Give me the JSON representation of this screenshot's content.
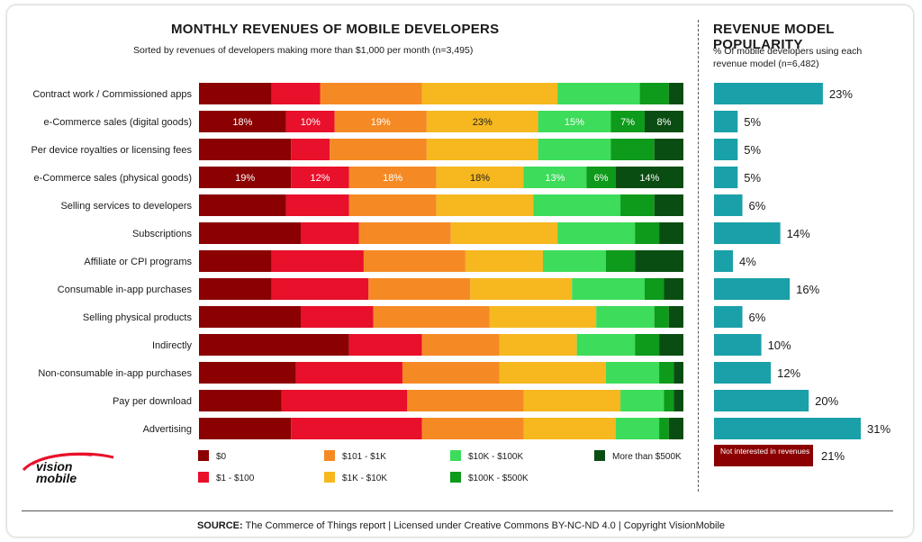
{
  "left_title": "MONTHLY REVENUES OF MOBILE DEVELOPERS",
  "left_subtitle": "Sorted by revenues of developers making more than $1,000 per month (n=3,495)",
  "right_title": "REVENUE MODEL POPULARITY",
  "right_subtitle": "% Of mobile developers using each revenue model (n=6,482)",
  "footer": {
    "source_label": "SOURCE:",
    "source_text": "The Commerce of Things report  |  Licensed under Creative Commons BY-NC-ND 4.0  |  Copyright VisionMobile"
  },
  "logo": {
    "line1": "vision",
    "line2": "mobile"
  },
  "not_interested": {
    "label": "Not interested in revenues",
    "pct": "21%",
    "color": "#8b0000"
  },
  "chart_data": [
    {
      "type": "bar",
      "orientation": "horizontal",
      "stacked": true,
      "percent_stacked": true,
      "title": "MONTHLY REVENUES OF MOBILE DEVELOPERS",
      "categories": [
        "Contract work / Commissioned apps",
        "e-Commerce sales (digital goods)",
        "Per device royalties or licensing fees",
        "e-Commerce sales (physical goods)",
        "Selling services to developers",
        "Subscriptions",
        "Affiliate or CPI programs",
        "Consumable in-app purchases",
        "Selling physical products",
        "Indirectly",
        "Non-consumable in-app purchases",
        "Pay per download",
        "Advertising"
      ],
      "series": [
        {
          "name": "$0",
          "color": "#8b0000",
          "values": [
            15,
            18,
            19,
            19,
            18,
            21,
            15,
            15,
            21,
            31,
            20,
            17,
            19
          ]
        },
        {
          "name": "$1 - $100",
          "color": "#e8102a",
          "values": [
            10,
            10,
            8,
            12,
            13,
            12,
            19,
            20,
            15,
            15,
            22,
            26,
            27
          ]
        },
        {
          "name": "$101 - $1K",
          "color": "#f58a25",
          "values": [
            21,
            19,
            20,
            18,
            18,
            19,
            21,
            21,
            24,
            16,
            20,
            24,
            21
          ]
        },
        {
          "name": "$1K - $10K",
          "color": "#f6b71f",
          "values": [
            28,
            23,
            23,
            18,
            20,
            22,
            16,
            21,
            22,
            16,
            22,
            20,
            19
          ]
        },
        {
          "name": "$10K - $100K",
          "color": "#3ddc5a",
          "values": [
            17,
            15,
            15,
            13,
            18,
            16,
            13,
            15,
            12,
            12,
            11,
            9,
            9
          ]
        },
        {
          "name": "$100K - $500K",
          "color": "#0e9a1a",
          "values": [
            6,
            7,
            9,
            6,
            7,
            5,
            6,
            4,
            3,
            5,
            3,
            2,
            2
          ]
        },
        {
          "name": "More than $500K",
          "color": "#0a4d12",
          "values": [
            3,
            8,
            6,
            14,
            6,
            5,
            10,
            4,
            3,
            5,
            2,
            2,
            3
          ]
        }
      ],
      "data_labels": [
        {
          "category": "e-Commerce sales (digital goods)",
          "labels": [
            "18%",
            "10%",
            "19%",
            "23%",
            "15%",
            "7%",
            "8%"
          ]
        },
        {
          "category": "e-Commerce sales (physical goods)",
          "labels": [
            "19%",
            "12%",
            "18%",
            "18%",
            "13%",
            "6%",
            "14%"
          ]
        }
      ],
      "legend": {
        "placement": "bottom",
        "entries": [
          "$0",
          "$1 - $100",
          "$101 - $1K",
          "$1K - $10K",
          "$10K - $100K",
          "$100K - $500K",
          "More than $500K"
        ]
      }
    },
    {
      "type": "bar",
      "orientation": "horizontal",
      "title": "REVENUE MODEL POPULARITY",
      "color": "#1aa0a8",
      "categories": [
        "Contract work / Commissioned apps",
        "e-Commerce sales (digital goods)",
        "Per device royalties or licensing fees",
        "e-Commerce sales (physical goods)",
        "Selling services to developers",
        "Subscriptions",
        "Affiliate or CPI programs",
        "Consumable in-app purchases",
        "Selling physical products",
        "Indirectly",
        "Non-consumable in-app purchases",
        "Pay per download",
        "Advertising"
      ],
      "values": [
        23,
        5,
        5,
        5,
        6,
        14,
        4,
        16,
        6,
        10,
        12,
        20,
        31
      ],
      "labels": [
        "23%",
        "5%",
        "5%",
        "5%",
        "6%",
        "14%",
        "4%",
        "16%",
        "6%",
        "10%",
        "12%",
        "20%",
        "31%"
      ],
      "xlim": [
        0,
        31
      ]
    }
  ]
}
